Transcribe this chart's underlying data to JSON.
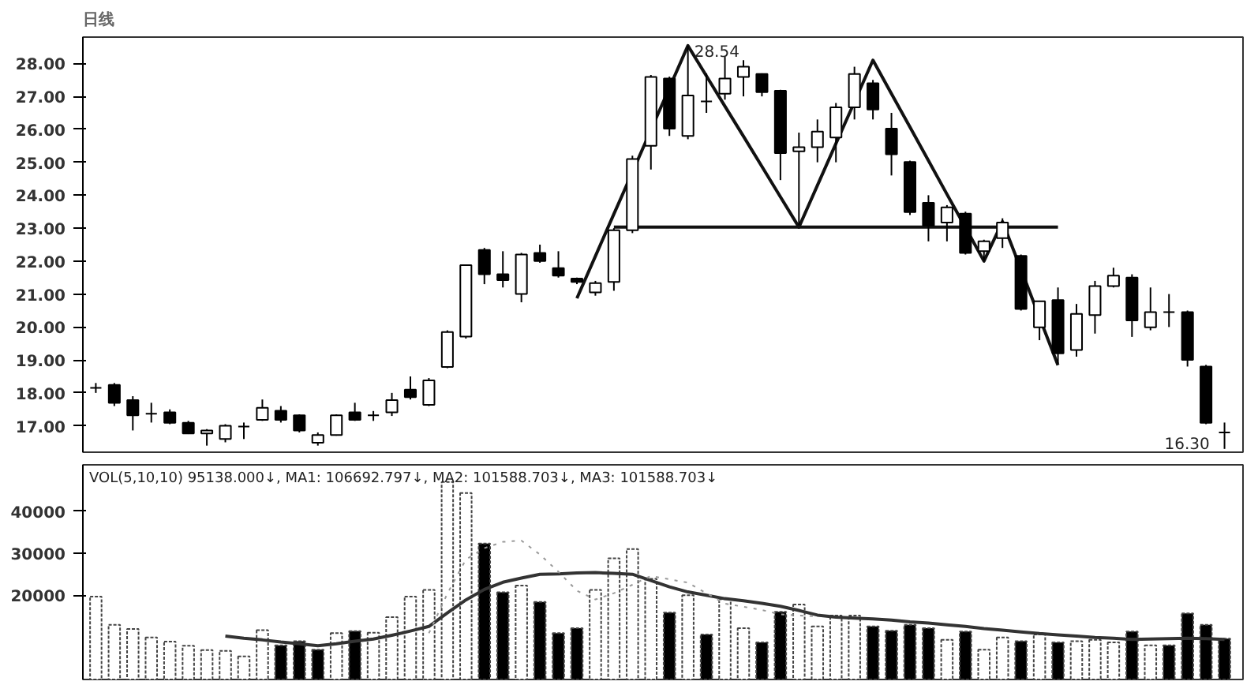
{
  "chart_data": [
    {
      "type": "candlestick",
      "title": "日线",
      "categories": [
        null,
        null,
        null,
        null,
        null,
        null,
        null,
        null,
        null,
        null,
        null,
        null,
        null,
        null,
        null,
        null,
        null,
        null,
        null,
        null,
        null,
        null,
        null,
        null,
        null,
        null,
        null,
        null,
        null,
        null,
        null,
        null,
        null,
        null,
        null,
        null,
        null,
        null,
        null,
        null,
        null,
        null,
        null,
        null,
        null,
        null,
        null,
        null,
        null,
        null,
        null,
        null,
        null,
        null,
        null,
        null,
        null,
        null,
        null,
        null,
        null,
        null
      ],
      "ohlc": [
        [
          18.15,
          18.3,
          18.0,
          18.15
        ],
        [
          18.24,
          18.3,
          17.6,
          17.7
        ],
        [
          17.78,
          17.9,
          16.86,
          17.32
        ],
        [
          17.37,
          17.7,
          17.1,
          17.37
        ],
        [
          17.41,
          17.5,
          17.05,
          17.09
        ],
        [
          17.09,
          17.15,
          16.75,
          16.77
        ],
        [
          16.77,
          16.9,
          16.4,
          16.86
        ],
        [
          16.6,
          17.05,
          16.5,
          17.0
        ],
        [
          16.98,
          17.1,
          16.6,
          16.98
        ],
        [
          17.18,
          17.8,
          17.15,
          17.55
        ],
        [
          17.46,
          17.6,
          17.1,
          17.18
        ],
        [
          17.32,
          17.35,
          16.8,
          16.86
        ],
        [
          16.49,
          16.8,
          16.4,
          16.72
        ],
        [
          16.72,
          17.35,
          16.7,
          17.32
        ],
        [
          17.41,
          17.7,
          17.15,
          17.18
        ],
        [
          17.32,
          17.45,
          17.15,
          17.32
        ],
        [
          17.41,
          18.0,
          17.3,
          17.78
        ],
        [
          18.1,
          18.5,
          17.8,
          17.87
        ],
        [
          17.64,
          18.45,
          17.6,
          18.38
        ],
        [
          18.79,
          19.9,
          18.75,
          19.85
        ],
        [
          19.71,
          21.9,
          19.65,
          21.88
        ],
        [
          22.34,
          22.4,
          21.3,
          21.6
        ],
        [
          21.6,
          22.3,
          21.2,
          21.42
        ],
        [
          21.0,
          22.25,
          20.75,
          22.2
        ],
        [
          22.25,
          22.5,
          21.95,
          22.0
        ],
        [
          21.79,
          22.3,
          21.5,
          21.56
        ],
        [
          21.47,
          21.5,
          21.3,
          21.37
        ],
        [
          21.05,
          21.4,
          20.95,
          21.33
        ],
        [
          21.37,
          23.0,
          21.1,
          22.94
        ],
        [
          22.94,
          25.2,
          22.85,
          25.1
        ],
        [
          25.5,
          27.65,
          24.78,
          27.59
        ],
        [
          27.54,
          27.6,
          25.8,
          26.02
        ],
        [
          25.8,
          28.54,
          25.7,
          27.03
        ],
        [
          26.85,
          27.7,
          26.5,
          26.85
        ],
        [
          27.08,
          28.2,
          26.9,
          27.54
        ],
        [
          27.59,
          28.1,
          27.0,
          27.9
        ],
        [
          27.68,
          27.7,
          27.0,
          27.13
        ],
        [
          27.17,
          27.2,
          24.46,
          25.28
        ],
        [
          25.33,
          25.9,
          23.1,
          25.46
        ],
        [
          25.46,
          26.3,
          25.0,
          25.93
        ],
        [
          25.75,
          26.8,
          25.0,
          26.67
        ],
        [
          26.67,
          27.9,
          26.3,
          27.68
        ],
        [
          27.4,
          27.5,
          26.3,
          26.6
        ],
        [
          26.02,
          26.5,
          24.6,
          25.24
        ],
        [
          25.01,
          25.05,
          23.4,
          23.49
        ],
        [
          23.77,
          24.0,
          22.6,
          23.08
        ],
        [
          23.17,
          23.7,
          22.6,
          23.63
        ],
        [
          23.44,
          23.5,
          22.2,
          22.25
        ],
        [
          22.3,
          22.65,
          22.0,
          22.6
        ],
        [
          22.7,
          23.3,
          22.4,
          23.17
        ],
        [
          22.16,
          22.2,
          20.5,
          20.55
        ],
        [
          19.99,
          20.8,
          19.6,
          20.78
        ],
        [
          20.82,
          21.2,
          18.9,
          19.2
        ],
        [
          19.3,
          20.7,
          19.1,
          20.4
        ],
        [
          20.36,
          21.4,
          19.8,
          21.24
        ],
        [
          21.24,
          21.8,
          21.2,
          21.56
        ],
        [
          21.5,
          21.6,
          19.7,
          20.2
        ],
        [
          19.99,
          21.2,
          19.9,
          20.45
        ],
        [
          20.45,
          21.0,
          20.0,
          20.45
        ],
        [
          20.45,
          20.5,
          18.8,
          19.0
        ],
        [
          18.8,
          18.85,
          17.05,
          17.09
        ],
        [
          16.8,
          17.1,
          16.3,
          16.8
        ]
      ],
      "series": [
        {
          "type": "line",
          "color": "#111111",
          "values": [
            null,
            null,
            null,
            null,
            null,
            null,
            null,
            null,
            null,
            null,
            null,
            null,
            null,
            null,
            null,
            null,
            null,
            null,
            null,
            null,
            null,
            null,
            null,
            null,
            null,
            null,
            20.87,
            22.15,
            23.43,
            24.7,
            25.98,
            27.26,
            28.54,
            27.62,
            26.7,
            25.79,
            24.87,
            23.95,
            23.03,
            24.3,
            25.57,
            26.83,
            28.1,
            27.08,
            26.07,
            25.05,
            24.03,
            23.02,
            22.0,
            23.2,
            21.75,
            20.29,
            18.84,
            null,
            null,
            null,
            null,
            null,
            null,
            null,
            null,
            null
          ]
        },
        {
          "type": "line",
          "color": "#111111",
          "values": [
            null,
            null,
            null,
            null,
            null,
            null,
            null,
            null,
            null,
            null,
            null,
            null,
            null,
            null,
            null,
            null,
            null,
            null,
            null,
            null,
            null,
            null,
            null,
            null,
            null,
            null,
            null,
            null,
            23.03,
            23.03,
            23.03,
            23.03,
            23.03,
            23.03,
            23.03,
            23.03,
            23.03,
            23.03,
            23.03,
            23.03,
            23.03,
            23.03,
            23.03,
            23.03,
            23.03,
            23.03,
            23.03,
            23.03,
            23.03,
            23.03,
            23.03,
            23.03,
            23.03,
            null,
            null,
            null,
            null,
            null,
            null,
            null,
            null,
            null
          ]
        }
      ],
      "ylim": [
        16.2,
        28.8
      ],
      "yticks": [
        {
          "value": 17,
          "label": "17.00"
        },
        {
          "value": 18,
          "label": "18.00"
        },
        {
          "value": 19,
          "label": "19.00"
        },
        {
          "value": 20,
          "label": "20.00"
        },
        {
          "value": 21,
          "label": "21.00"
        },
        {
          "value": 22,
          "label": "22.00"
        },
        {
          "value": 23,
          "label": "23.00"
        },
        {
          "value": 24,
          "label": "24.00"
        },
        {
          "value": 25,
          "label": "25.00"
        },
        {
          "value": 26,
          "label": "26.00"
        },
        {
          "value": 27,
          "label": "27.00"
        },
        {
          "value": 28,
          "label": "28.00"
        }
      ],
      "tick_labels": "y",
      "annotations": [
        "28.54",
        "16.30"
      ]
    },
    {
      "type": "bar",
      "categories": [
        null,
        null,
        null,
        null,
        null,
        null,
        null,
        null,
        null,
        null,
        null,
        null,
        null,
        null,
        null,
        null,
        null,
        null,
        null,
        null,
        null,
        null,
        null,
        null,
        null,
        null,
        null,
        null,
        null,
        null,
        null,
        null,
        null,
        null,
        null,
        null,
        null,
        null,
        null,
        null,
        null,
        null,
        null,
        null,
        null,
        null,
        null,
        null,
        null,
        null,
        null,
        null,
        null,
        null,
        null,
        null,
        null,
        null,
        null,
        null,
        null,
        null
      ],
      "series": [
        {
          "type": "bar",
          "values": [
            19700,
            13000,
            12000,
            10000,
            9000,
            8000,
            7000,
            6800,
            5500,
            11700,
            8100,
            9100,
            7100,
            11000,
            11500,
            11100,
            14800,
            19700,
            21300,
            46900,
            44300,
            32300,
            20700,
            22300,
            18400,
            11000,
            12200,
            21300,
            28800,
            31000,
            23900,
            15900,
            20000,
            10700,
            19100,
            12200,
            8800,
            16100,
            17800,
            12600,
            15200,
            15200,
            12600,
            11600,
            13000,
            12200,
            9400,
            11400,
            7100,
            10000,
            9100,
            10700,
            8800,
            9100,
            9400,
            8800,
            11400,
            8100,
            8100,
            15700,
            13000,
            9700
          ],
          "colors": [
            "#ffffff",
            "#ffffff",
            "#ffffff",
            "#ffffff",
            "#ffffff",
            "#ffffff",
            "#ffffff",
            "#ffffff",
            "#ffffff",
            "#ffffff",
            "#000000",
            "#000000",
            "#000000",
            "#ffffff",
            "#000000",
            "#ffffff",
            "#ffffff",
            "#ffffff",
            "#ffffff",
            "#ffffff",
            "#ffffff",
            "#000000",
            "#000000",
            "#ffffff",
            "#000000",
            "#000000",
            "#000000",
            "#ffffff",
            "#ffffff",
            "#ffffff",
            "#ffffff",
            "#000000",
            "#ffffff",
            "#000000",
            "#ffffff",
            "#ffffff",
            "#000000",
            "#000000",
            "#ffffff",
            "#ffffff",
            "#ffffff",
            "#ffffff",
            "#000000",
            "#000000",
            "#000000",
            "#000000",
            "#ffffff",
            "#000000",
            "#ffffff",
            "#ffffff",
            "#000000",
            "#ffffff",
            "#000000",
            "#ffffff",
            "#ffffff",
            "#ffffff",
            "#000000",
            "#ffffff",
            "#000000",
            "#000000",
            "#000000",
            "#000000"
          ]
        },
        {
          "type": "line",
          "color": "#333333",
          "line_style": "solid",
          "values": [
            null,
            null,
            null,
            null,
            null,
            null,
            null,
            10300,
            9800,
            9400,
            8900,
            8500,
            8000,
            8500,
            9100,
            9600,
            10500,
            11500,
            12600,
            15800,
            18900,
            21400,
            23100,
            24100,
            25000,
            25100,
            25300,
            25400,
            25200,
            25000,
            23500,
            22000,
            20800,
            20000,
            19200,
            18700,
            18100,
            17400,
            16400,
            15300,
            14800,
            14600,
            14400,
            14100,
            13700,
            13400,
            13000,
            12600,
            12100,
            11700,
            11300,
            10900,
            10600,
            10300,
            10000,
            9800,
            9500,
            9600,
            9700,
            9800,
            9700,
            9500
          ]
        },
        {
          "type": "line",
          "color": "#999999",
          "line_style": "dotted",
          "values": [
            null,
            null,
            null,
            null,
            null,
            null,
            null,
            null,
            null,
            null,
            null,
            null,
            null,
            null,
            null,
            null,
            null,
            null,
            11000,
            20400,
            28500,
            31200,
            32700,
            33000,
            29700,
            25600,
            21100,
            19000,
            20500,
            22500,
            24600,
            23800,
            23000,
            20500,
            18000,
            17300,
            16500,
            15500,
            15200,
            15000,
            null,
            null,
            null,
            null,
            null,
            null,
            null,
            null,
            null,
            null,
            null,
            null,
            null,
            null,
            null,
            null,
            null,
            null,
            null,
            null,
            null,
            null
          ]
        }
      ],
      "ylim": [
        0,
        51000
      ],
      "yticks": [
        20000,
        30000,
        40000
      ],
      "tick_labels": "y",
      "annotations": [
        "VOL(5,10,10) 95138.000↓, MA1: 106692.797↓, MA2: 101588.703↓, MA3: 101588.703↓"
      ]
    }
  ]
}
